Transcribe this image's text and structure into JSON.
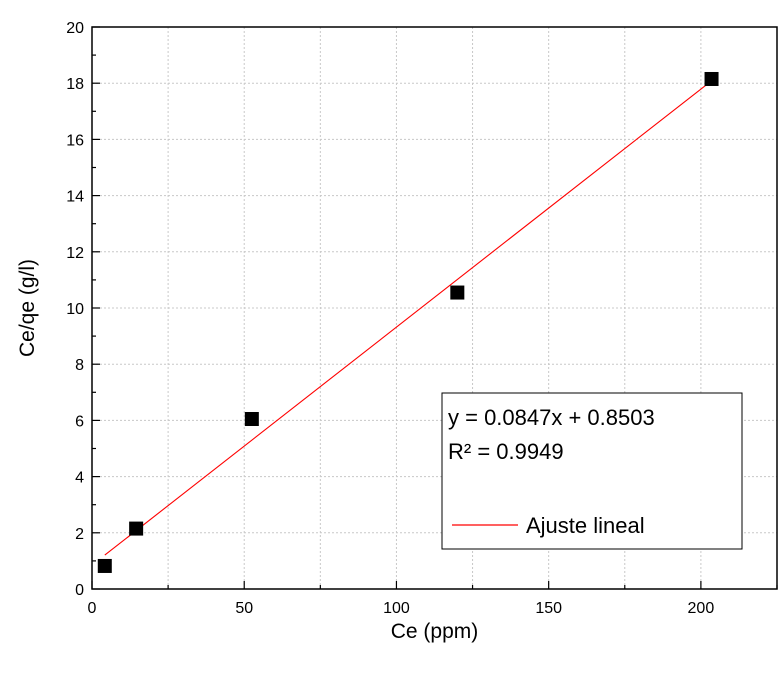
{
  "chart_data": {
    "type": "scatter",
    "title": "",
    "xlabel": "Ce (ppm)",
    "ylabel": "Ce/qe (g/l)",
    "xlim": [
      0,
      225
    ],
    "ylim": [
      0,
      20
    ],
    "x_ticks": [
      0,
      50,
      100,
      150,
      200
    ],
    "y_ticks": [
      0,
      2,
      4,
      6,
      8,
      10,
      12,
      14,
      16,
      18,
      20
    ],
    "x_tick_labels": [
      "0",
      "50",
      "100",
      "150",
      "200"
    ],
    "y_tick_labels": [
      "0",
      "2",
      "4",
      "6",
      "8",
      "10",
      "12",
      "14",
      "16",
      "18",
      "20"
    ],
    "grid": true,
    "series": [
      {
        "type": "scatter",
        "marker": "square",
        "color": "#000000",
        "x": [
          4.2,
          14.5,
          52.5,
          120.0,
          203.5
        ],
        "y": [
          0.82,
          2.15,
          6.05,
          10.55,
          18.15
        ]
      },
      {
        "type": "line",
        "name": "Ajuste lineal",
        "color": "#ff0000",
        "x": [
          4.2,
          203.5
        ],
        "y": [
          1.206,
          18.087
        ]
      }
    ],
    "annotation": {
      "equation": "y = 0.0847x + 0.8503",
      "r_squared": "R² = 0.9949"
    },
    "legend_position": "bottom-right",
    "legend_entries": [
      "Ajuste lineal"
    ]
  }
}
